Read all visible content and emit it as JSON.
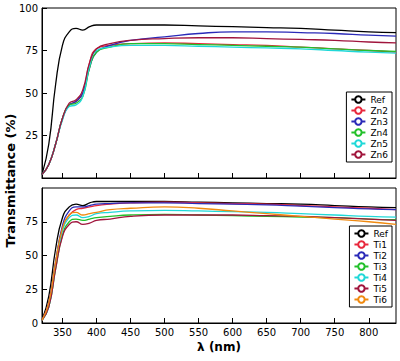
{
  "chart_data": [
    {
      "type": "line",
      "y_label": "Transmittance (%)",
      "x": [
        320,
        330,
        340,
        350,
        360,
        370,
        380,
        390,
        400,
        420,
        450,
        500,
        550,
        600,
        650,
        700,
        750,
        800,
        840
      ],
      "xlim": [
        320,
        840
      ],
      "xticks": [
        350,
        400,
        450,
        500,
        550,
        600,
        650,
        700,
        750,
        800
      ],
      "ylim": [
        0,
        100
      ],
      "yticks": [
        25,
        50,
        75,
        100
      ],
      "tick_labels": "y",
      "grid": false,
      "legend": "right",
      "series": [
        {
          "name": "Ref",
          "color": "#000000",
          "values": [
            2,
            20,
            55,
            78,
            86,
            88,
            87,
            89,
            90,
            90,
            90,
            90,
            89.5,
            89,
            88.5,
            88,
            87,
            86,
            85.5
          ]
        },
        {
          "name": "Zn2",
          "color": "#e8283c",
          "values": [
            2,
            8,
            20,
            35,
            43,
            45,
            50,
            68,
            76,
            78,
            79,
            79.5,
            79,
            78.5,
            78,
            77,
            76,
            75,
            74
          ]
        },
        {
          "name": "Zn3",
          "color": "#2a2ab8",
          "values": [
            2,
            8,
            20,
            35,
            43,
            45,
            50,
            65,
            74,
            78,
            81,
            83,
            85,
            86,
            86,
            85.5,
            85,
            84,
            83.5
          ]
        },
        {
          "name": "Zn4",
          "color": "#22c02a",
          "values": [
            2,
            8,
            20,
            35,
            43,
            44,
            48,
            65,
            74,
            77,
            79,
            79,
            78.5,
            78,
            77.5,
            77,
            76,
            75,
            74.5
          ]
        },
        {
          "name": "Zn5",
          "color": "#20d8d8",
          "values": [
            2,
            8,
            20,
            34,
            42,
            43,
            48,
            66,
            75,
            77,
            78,
            78,
            77.5,
            77,
            76.5,
            76,
            75,
            74,
            73.5
          ]
        },
        {
          "name": "Zn6",
          "color": "#a0153c",
          "values": [
            2,
            8,
            20,
            35,
            44,
            46,
            52,
            68,
            76,
            79,
            81,
            82,
            82.5,
            82.5,
            82,
            81.5,
            81,
            80,
            79.5
          ]
        }
      ]
    },
    {
      "type": "line",
      "x_label": "λ (nm)",
      "x": [
        320,
        330,
        340,
        350,
        360,
        370,
        380,
        390,
        400,
        420,
        450,
        500,
        550,
        600,
        650,
        700,
        750,
        800,
        840
      ],
      "xlim": [
        320,
        840
      ],
      "xticks": [
        350,
        400,
        450,
        500,
        550,
        600,
        650,
        700,
        750,
        800
      ],
      "ylim": [
        0,
        100
      ],
      "yticks": [
        0,
        25,
        50,
        75
      ],
      "grid": false,
      "legend": "right",
      "series": [
        {
          "name": "Ref",
          "color": "#000000",
          "values": [
            2,
            20,
            55,
            78,
            86,
            88,
            87,
            89,
            90,
            90,
            90,
            90,
            89.5,
            89,
            88.5,
            88,
            87,
            86,
            85.5
          ]
        },
        {
          "name": "Ti1",
          "color": "#e8283c",
          "values": [
            2,
            15,
            45,
            70,
            80,
            84,
            85,
            86,
            87,
            88,
            89,
            89.5,
            89,
            88.5,
            88,
            87,
            86,
            85,
            84
          ]
        },
        {
          "name": "Ti2",
          "color": "#2a2ab8",
          "values": [
            2,
            15,
            45,
            72,
            83,
            86,
            86,
            87,
            88,
            88.5,
            89,
            89,
            88.5,
            88,
            87.5,
            86.5,
            85.5,
            84.5,
            84
          ]
        },
        {
          "name": "Ti3",
          "color": "#22c02a",
          "values": [
            2,
            12,
            40,
            65,
            75,
            77,
            76,
            77,
            78,
            79,
            80,
            80.5,
            80,
            79.5,
            79,
            78.5,
            78,
            77,
            76.5
          ]
        },
        {
          "name": "Ti4",
          "color": "#20d8d8",
          "values": [
            2,
            12,
            42,
            68,
            78,
            80,
            78,
            79,
            81,
            82,
            83,
            83.5,
            83,
            82.5,
            82,
            81,
            80,
            79,
            78.5
          ]
        },
        {
          "name": "Ti5",
          "color": "#a0153c",
          "values": [
            2,
            12,
            40,
            64,
            73,
            75,
            73,
            74,
            76,
            77,
            79,
            80,
            80,
            80,
            79.5,
            79,
            78,
            77,
            76
          ]
        },
        {
          "name": "Ti6",
          "color": "#f08a10",
          "values": [
            2,
            15,
            45,
            70,
            80,
            82,
            80,
            81,
            82,
            84,
            85,
            86,
            85,
            83,
            81,
            79,
            77,
            75,
            73
          ]
        }
      ]
    }
  ]
}
